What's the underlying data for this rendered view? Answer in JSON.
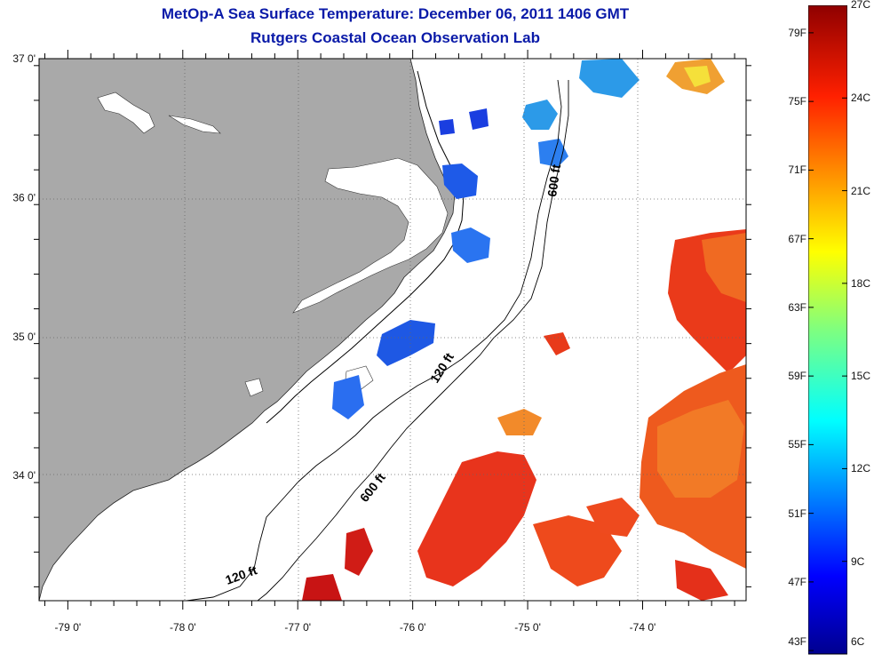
{
  "title_line1": "MetOp-A Sea Surface Temperature:  December 06, 2011 1406 GMT",
  "title_line2": "Rutgers Coastal Ocean Observation Lab",
  "axes": {
    "lon_ticks": [
      {
        "value": -79,
        "label": "-79 0'"
      },
      {
        "value": -78,
        "label": "-78 0'"
      },
      {
        "value": -77,
        "label": "-77 0'"
      },
      {
        "value": -76,
        "label": "-76 0'"
      },
      {
        "value": -75,
        "label": "-75 0'"
      },
      {
        "value": -74,
        "label": "-74 0'"
      }
    ],
    "lat_ticks": [
      {
        "value": 37,
        "label": "37 0'"
      },
      {
        "value": 36,
        "label": "36 0'"
      },
      {
        "value": 35,
        "label": "35 0'"
      },
      {
        "value": 34,
        "label": "34 0'"
      }
    ],
    "lon_range": [
      -79.25,
      -73.1
    ],
    "lat_range": [
      33.1,
      37.0
    ]
  },
  "contours": {
    "label_120": "120 ft",
    "label_600": "600 ft"
  },
  "colorbar": {
    "fahrenheit": [
      "79F",
      "75F",
      "71F",
      "67F",
      "63F",
      "59F",
      "55F",
      "51F",
      "47F",
      "43F"
    ],
    "celsius": [
      "27C",
      "24C",
      "21C",
      "18C",
      "15C",
      "12C",
      "9C",
      "6C"
    ],
    "range_c": [
      6,
      27
    ]
  },
  "colors": {
    "land": "#a9a9a9",
    "title": "#0a1aa8",
    "warm_water": "#e8301c",
    "cold_water": "#1e64e6"
  }
}
